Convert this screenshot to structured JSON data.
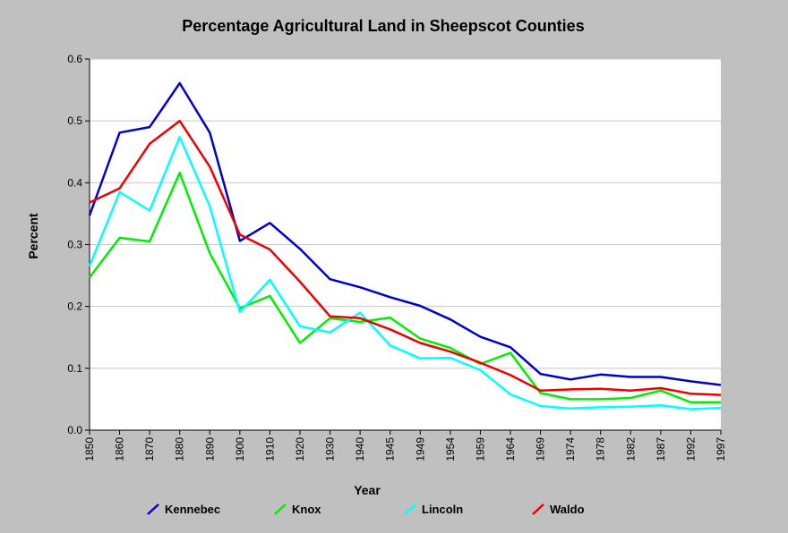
{
  "chart_data": {
    "type": "line",
    "title": "Percentage Agricultural Land in Sheepscot Counties",
    "xlabel": "Year",
    "ylabel": "Percent",
    "ylim": [
      0,
      0.6
    ],
    "y_ticks": [
      "0.0",
      "0.1",
      "0.2",
      "0.3",
      "0.4",
      "0.5",
      "0.6"
    ],
    "grid": true,
    "legend_position": "bottom",
    "categories": [
      "1850",
      "1860",
      "1870",
      "1880",
      "1890",
      "1900",
      "1910",
      "1920",
      "1930",
      "1940",
      "1945",
      "1949",
      "1954",
      "1959",
      "1964",
      "1969",
      "1974",
      "1978",
      "1982",
      "1987",
      "1992",
      "1997"
    ],
    "series": [
      {
        "name": "Kennebec",
        "color": "#0000cc",
        "values": [
          0.347,
          0.481,
          0.49,
          0.561,
          0.481,
          0.306,
          0.335,
          0.293,
          0.244,
          0.231,
          0.215,
          0.201,
          0.179,
          0.151,
          0.134,
          0.091,
          0.082,
          0.09,
          0.086,
          0.086,
          0.079,
          0.073
        ]
      },
      {
        "name": "Knox",
        "color": "#00ee00",
        "values": [
          0.247,
          0.311,
          0.305,
          0.416,
          0.286,
          0.197,
          0.217,
          0.141,
          0.181,
          0.175,
          0.182,
          0.148,
          0.133,
          0.107,
          0.125,
          0.06,
          0.05,
          0.05,
          0.052,
          0.064,
          0.045,
          0.045
        ]
      },
      {
        "name": "Lincoln",
        "color": "#00ffff",
        "values": [
          0.265,
          0.385,
          0.355,
          0.474,
          0.362,
          0.191,
          0.243,
          0.168,
          0.158,
          0.19,
          0.137,
          0.116,
          0.117,
          0.097,
          0.058,
          0.039,
          0.035,
          0.037,
          0.038,
          0.04,
          0.034,
          0.036
        ]
      },
      {
        "name": "Waldo",
        "color": "#ee0000",
        "values": [
          0.368,
          0.391,
          0.463,
          0.5,
          0.426,
          0.316,
          0.292,
          0.24,
          0.184,
          0.181,
          0.163,
          0.141,
          0.127,
          0.109,
          0.089,
          0.064,
          0.066,
          0.067,
          0.064,
          0.068,
          0.059,
          0.057
        ]
      }
    ]
  }
}
